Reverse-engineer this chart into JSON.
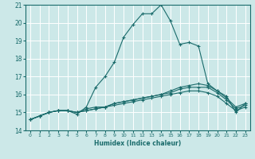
{
  "xlabel": "Humidex (Indice chaleur)",
  "ylabel": "",
  "xlim": [
    -0.5,
    23.5
  ],
  "ylim": [
    14,
    21
  ],
  "yticks": [
    14,
    15,
    16,
    17,
    18,
    19,
    20,
    21
  ],
  "xticks": [
    0,
    1,
    2,
    3,
    4,
    5,
    6,
    7,
    8,
    9,
    10,
    11,
    12,
    13,
    14,
    15,
    16,
    17,
    18,
    19,
    20,
    21,
    22,
    23
  ],
  "background_color": "#cce8e8",
  "grid_color": "#ffffff",
  "line_color": "#1a6b6b",
  "series": [
    [
      14.6,
      14.8,
      15.0,
      15.1,
      15.1,
      14.9,
      15.3,
      16.4,
      17.0,
      17.8,
      19.2,
      19.9,
      20.5,
      20.5,
      21.0,
      20.1,
      18.8,
      18.9,
      18.7,
      16.6,
      16.2,
      15.9,
      15.0,
      15.5
    ],
    [
      14.6,
      14.8,
      15.0,
      15.1,
      15.1,
      15.0,
      15.2,
      15.3,
      15.3,
      15.5,
      15.6,
      15.7,
      15.8,
      15.9,
      16.0,
      16.2,
      16.4,
      16.5,
      16.6,
      16.5,
      16.2,
      15.8,
      15.3,
      15.5
    ],
    [
      14.6,
      14.8,
      15.0,
      15.1,
      15.1,
      15.0,
      15.1,
      15.2,
      15.3,
      15.5,
      15.6,
      15.7,
      15.8,
      15.9,
      16.0,
      16.1,
      16.3,
      16.4,
      16.4,
      16.4,
      16.1,
      15.7,
      15.2,
      15.4
    ],
    [
      14.6,
      14.8,
      15.0,
      15.1,
      15.1,
      15.0,
      15.1,
      15.2,
      15.3,
      15.4,
      15.5,
      15.6,
      15.7,
      15.8,
      15.9,
      16.0,
      16.1,
      16.2,
      16.2,
      16.1,
      15.9,
      15.5,
      15.1,
      15.3
    ]
  ]
}
